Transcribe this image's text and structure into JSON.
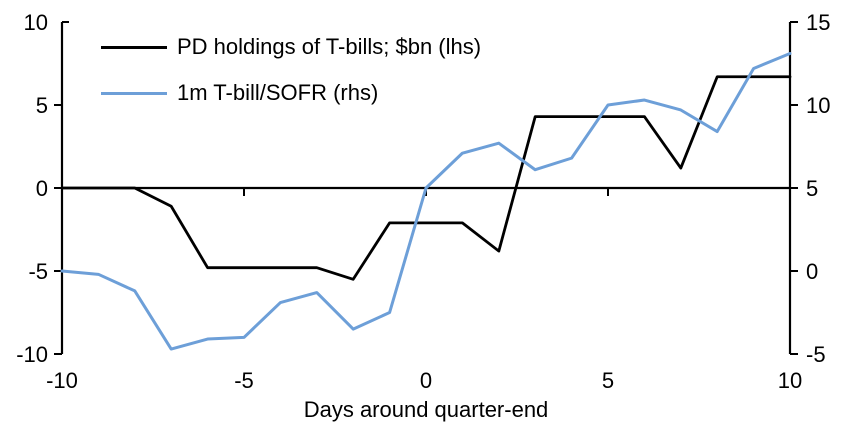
{
  "chart_data": {
    "type": "line",
    "title": "",
    "xlabel": "Days around quarter-end",
    "x": [
      -10,
      -9,
      -8,
      -7,
      -6,
      -5,
      -4,
      -3,
      -2,
      -1,
      0,
      1,
      2,
      3,
      4,
      5,
      6,
      7,
      8,
      9,
      10
    ],
    "x_ticks": [
      -10,
      -5,
      0,
      5,
      10
    ],
    "left_axis": {
      "min": -10,
      "max": 10,
      "ticks": [
        10,
        5,
        0,
        -5,
        -10
      ]
    },
    "right_axis": {
      "min": -5,
      "max": 15,
      "ticks": [
        15,
        10,
        5,
        0,
        -5
      ]
    },
    "zero_line": true,
    "grid": false,
    "legend_position": "top-left",
    "background": "#ffffff",
    "series": [
      {
        "id": "pd-holdings",
        "name": "PD holdings of T-bills; $bn (lhs)",
        "axis": "left",
        "color": "#000000",
        "values": [
          0,
          0,
          0,
          -1.1,
          -4.8,
          -4.8,
          -4.8,
          -4.8,
          -5.5,
          -2.1,
          -2.1,
          -2.1,
          -3.8,
          4.3,
          4.3,
          4.3,
          4.3,
          1.2,
          6.7,
          6.7,
          6.7
        ]
      },
      {
        "id": "tbill-sofr",
        "name": "1m T-bill/SOFR (rhs)",
        "axis": "right",
        "color": "#6D9FD8",
        "values": [
          0,
          -0.2,
          -1.2,
          -4.7,
          -4.1,
          -4.0,
          -1.9,
          -1.3,
          -3.5,
          -2.5,
          5.0,
          7.1,
          7.7,
          6.1,
          6.8,
          10.0,
          10.3,
          9.7,
          8.4,
          12.2,
          13.1
        ]
      }
    ]
  }
}
